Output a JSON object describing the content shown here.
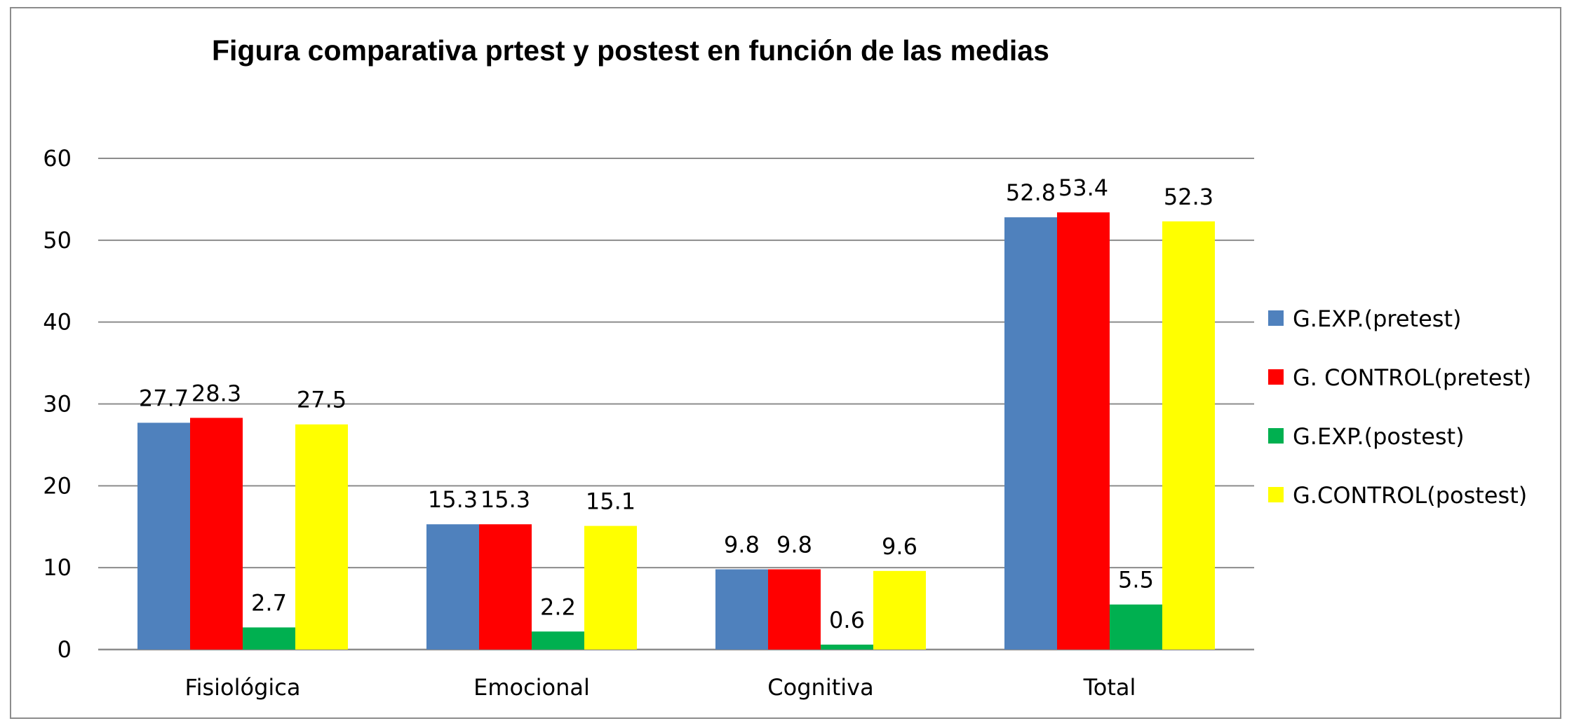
{
  "chart_data": {
    "type": "bar",
    "title": "Figura comparativa prtest y postest en función de las  medias",
    "categories": [
      "Fisiológica",
      "Emocional",
      "Cognitiva",
      "Total"
    ],
    "series": [
      {
        "name": "G.EXP.(pretest)",
        "color": "#4f81bd",
        "values": [
          27.7,
          15.3,
          9.8,
          52.8
        ]
      },
      {
        "name": "G. CONTROL(pretest)",
        "color": "#ff0000",
        "values": [
          28.3,
          15.3,
          9.8,
          53.4
        ]
      },
      {
        "name": "G.EXP.(postest)",
        "color": "#00b050",
        "values": [
          2.7,
          2.2,
          0.6,
          5.5
        ]
      },
      {
        "name": "G.CONTROL(postest)",
        "color": "#ffff00",
        "values": [
          27.5,
          15.1,
          9.6,
          52.3
        ]
      }
    ],
    "yticks": [
      "0",
      "10",
      "20",
      "30",
      "40",
      "50",
      "60"
    ],
    "ylim": [
      0,
      60
    ],
    "xlabel": "",
    "ylabel": "",
    "grid": true,
    "legend": "right"
  }
}
